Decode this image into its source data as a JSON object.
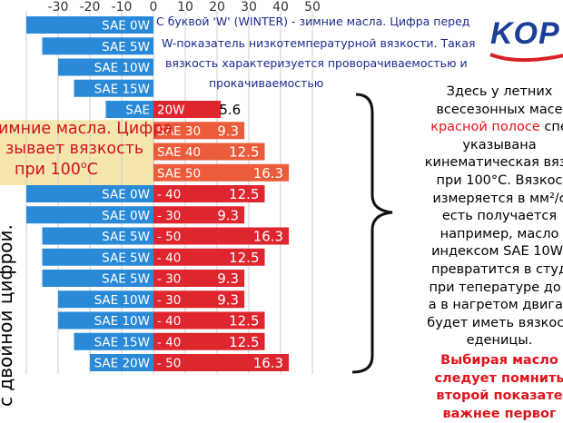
{
  "logo": {
    "text": "KOP"
  },
  "top_note": {
    "lines": [
      "С буквой 'W' (WINTER) - зимние масла. Цифра перед",
      "W-показатель низкотемпературной вязкости. Такая",
      "вязкость характеризуется проворачиваемостью и",
      "прокачиваемостью"
    ]
  },
  "left_note": {
    "lines": [
      "имние масла. Цифра",
      "зывает вязкость",
      "при 100"
    ],
    "degree": "o",
    "unit": "C"
  },
  "vertical_note": "с двойной цифрой.",
  "right_note": {
    "lines": [
      {
        "text": "Здесь у летних",
        "style": ""
      },
      {
        "text": "всесезонных масе",
        "style": ""
      },
      {
        "text": "красной полосе",
        "style": "red",
        "tail": " спе"
      },
      {
        "text": "указывана",
        "style": ""
      },
      {
        "text": "кинематическая вязк",
        "style": ""
      },
      {
        "text": "при 100°С. Вязкос",
        "style": ""
      },
      {
        "text": "измеряется в мм²/с",
        "style": ""
      },
      {
        "text": "есть получается",
        "style": ""
      },
      {
        "text": "например, масло",
        "style": ""
      },
      {
        "text": "индексом SAE 10W/",
        "style": ""
      },
      {
        "text": "превратится в студ",
        "style": ""
      },
      {
        "text": "при тепературе до -",
        "style": ""
      },
      {
        "text": "а в нагретом двигат",
        "style": ""
      },
      {
        "text": "будет иметь вязкост",
        "style": ""
      },
      {
        "text": "еденицы.",
        "style": ""
      },
      {
        "text": "Выбирая масло",
        "style": "redb"
      },
      {
        "text": "следует помнить",
        "style": "redb"
      },
      {
        "text": "второй показате",
        "style": "redb"
      },
      {
        "text": "важнее первог",
        "style": "redb"
      }
    ]
  },
  "colors": {
    "blue_bar": "#2a8ad8",
    "red_bar": "#df262f",
    "orange_bar": "#eb5c3a",
    "grid": "#cccccc",
    "axis_text": "#333333",
    "highlight": "#f3e2a0"
  },
  "chart_data": {
    "type": "bar",
    "x_ticks": [
      -30,
      -20,
      -10,
      0,
      10,
      20,
      30,
      40,
      50
    ],
    "xlim": [
      -40,
      55
    ],
    "winter_label_prefix": "SAE",
    "rows": [
      {
        "winter": "SAE 0W",
        "low_temp": -40,
        "summer": "",
        "viscosity": null,
        "viscosity_label": ""
      },
      {
        "winter": "SAE 5W",
        "low_temp": -35,
        "summer": "",
        "viscosity": null,
        "viscosity_label": ""
      },
      {
        "winter": "SAE 10W",
        "low_temp": -30,
        "summer": "",
        "viscosity": null,
        "viscosity_label": ""
      },
      {
        "winter": "SAE 15W",
        "low_temp": -25,
        "summer": "",
        "viscosity": null,
        "viscosity_label": ""
      },
      {
        "winter": "SAE",
        "low_temp": -15,
        "summer": "20W",
        "viscosity": 5.6,
        "viscosity_label": "5.6"
      },
      {
        "winter": "",
        "low_temp": null,
        "summer": "SAE 30",
        "viscosity": 9.3,
        "viscosity_label": "9.3"
      },
      {
        "winter": "",
        "low_temp": null,
        "summer": "SAE 40",
        "viscosity": 12.5,
        "viscosity_label": "12.5"
      },
      {
        "winter": "",
        "low_temp": null,
        "summer": "SAE 50",
        "viscosity": 16.3,
        "viscosity_label": "16.3"
      },
      {
        "winter": "SAE 0W",
        "low_temp": -40,
        "summer": "- 40",
        "viscosity": 12.5,
        "viscosity_label": "12.5"
      },
      {
        "winter": "SAE 0W",
        "low_temp": -40,
        "summer": "- 30",
        "viscosity": 9.3,
        "viscosity_label": "9.3"
      },
      {
        "winter": "SAE 5W",
        "low_temp": -35,
        "summer": "- 50",
        "viscosity": 16.3,
        "viscosity_label": "16.3"
      },
      {
        "winter": "SAE 5W",
        "low_temp": -35,
        "summer": "- 40",
        "viscosity": 12.5,
        "viscosity_label": "12.5"
      },
      {
        "winter": "SAE 5W",
        "low_temp": -35,
        "summer": "- 30",
        "viscosity": 9.3,
        "viscosity_label": "9.3"
      },
      {
        "winter": "SAE 10W",
        "low_temp": -30,
        "summer": "- 30",
        "viscosity": 9.3,
        "viscosity_label": "9.3"
      },
      {
        "winter": "SAE 10W",
        "low_temp": -30,
        "summer": "- 40",
        "viscosity": 12.5,
        "viscosity_label": "12.5"
      },
      {
        "winter": "SAE 15W",
        "low_temp": -25,
        "summer": "- 40",
        "viscosity": 12.5,
        "viscosity_label": "12.5"
      },
      {
        "winter": "SAE 20W",
        "low_temp": -20,
        "summer": "- 50",
        "viscosity": 16.3,
        "viscosity_label": "16.3"
      }
    ]
  }
}
